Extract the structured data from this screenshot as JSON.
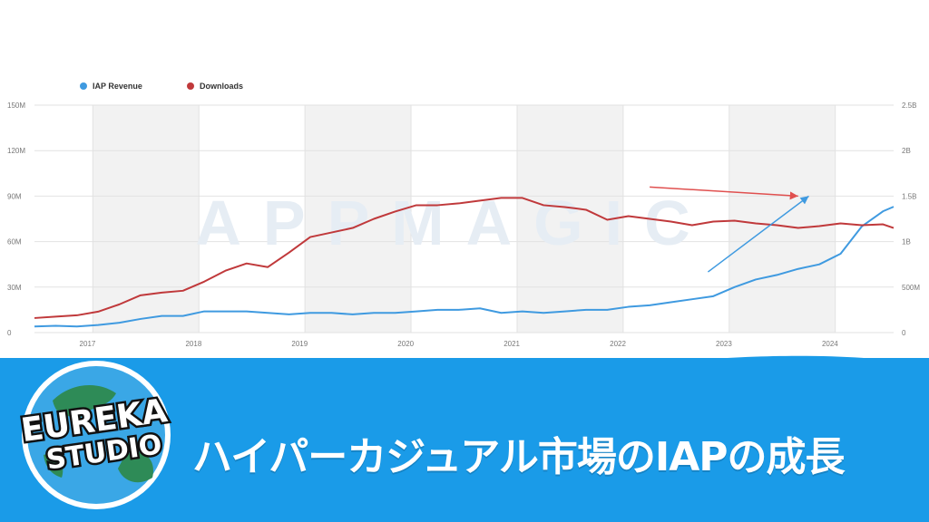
{
  "chart_data": {
    "type": "line",
    "watermark": "APPMAGIC",
    "legend": {
      "placement": "top-left"
    },
    "grid": true,
    "x_ticks": [
      "2017",
      "2018",
      "2019",
      "2020",
      "2021",
      "2022",
      "2023",
      "2024"
    ],
    "y_left": {
      "ticks": [
        "0",
        "30M",
        "60M",
        "90M",
        "120M",
        "150M"
      ],
      "range": [
        0,
        150000000
      ]
    },
    "y_right": {
      "ticks": [
        "0",
        "500M",
        "1B",
        "1.5B",
        "2B",
        "2.5B"
      ],
      "range": [
        0,
        2500000000
      ]
    },
    "xlim": [
      2016.6,
      2024.7
    ],
    "series": [
      {
        "name": "IAP Revenue",
        "axis": "left",
        "color": "#3f9ae0",
        "x": [
          2016.6,
          2016.8,
          2017.0,
          2017.2,
          2017.4,
          2017.6,
          2017.8,
          2018.0,
          2018.2,
          2018.4,
          2018.6,
          2018.8,
          2019.0,
          2019.2,
          2019.4,
          2019.6,
          2019.8,
          2020.0,
          2020.2,
          2020.4,
          2020.6,
          2020.8,
          2021.0,
          2021.2,
          2021.4,
          2021.6,
          2021.8,
          2022.0,
          2022.2,
          2022.4,
          2022.6,
          2022.8,
          2023.0,
          2023.2,
          2023.4,
          2023.6,
          2023.8,
          2024.0,
          2024.2,
          2024.4,
          2024.6,
          2024.7
        ],
        "values": [
          4,
          4.5,
          4,
          5,
          6.5,
          9,
          11,
          11,
          14,
          14,
          14,
          13,
          12,
          13,
          13,
          12,
          13,
          13,
          14,
          15,
          15,
          16,
          13,
          14,
          13,
          14,
          15,
          15,
          17,
          18,
          20,
          22,
          24,
          30,
          35,
          38,
          42,
          45,
          52,
          70,
          80,
          83
        ]
      },
      {
        "name": "Downloads",
        "axis": "right",
        "color": "#c0393b",
        "x": [
          2016.6,
          2016.8,
          2017.0,
          2017.2,
          2017.4,
          2017.6,
          2017.8,
          2018.0,
          2018.2,
          2018.4,
          2018.6,
          2018.8,
          2019.0,
          2019.2,
          2019.4,
          2019.6,
          2019.8,
          2020.0,
          2020.2,
          2020.4,
          2020.6,
          2020.8,
          2021.0,
          2021.2,
          2021.4,
          2021.6,
          2021.8,
          2022.0,
          2022.2,
          2022.4,
          2022.6,
          2022.8,
          2023.0,
          2023.2,
          2023.4,
          2023.6,
          2023.8,
          2024.0,
          2024.2,
          2024.4,
          2024.6,
          2024.7
        ],
        "values": [
          160,
          175,
          190,
          230,
          310,
          410,
          440,
          460,
          560,
          680,
          760,
          720,
          880,
          1050,
          1100,
          1150,
          1250,
          1330,
          1400,
          1400,
          1420,
          1450,
          1480,
          1480,
          1400,
          1380,
          1350,
          1240,
          1280,
          1250,
          1220,
          1180,
          1220,
          1230,
          1200,
          1180,
          1150,
          1170,
          1200,
          1180,
          1190,
          1150
        ]
      }
    ],
    "annotations": [
      {
        "type": "arrow",
        "color": "#e0504f",
        "from": [
          2022.4,
          1.6
        ],
        "to": [
          2023.8,
          1.5
        ]
      },
      {
        "type": "arrow",
        "color": "#3f9ae0",
        "from": [
          2022.95,
          40
        ],
        "to": [
          2023.9,
          90
        ]
      }
    ]
  },
  "banner": {
    "logo_line1": "EUREKA",
    "logo_line2": "STUDIO",
    "headline": "ハイパーカジュアル市場のIAPの成長"
  }
}
